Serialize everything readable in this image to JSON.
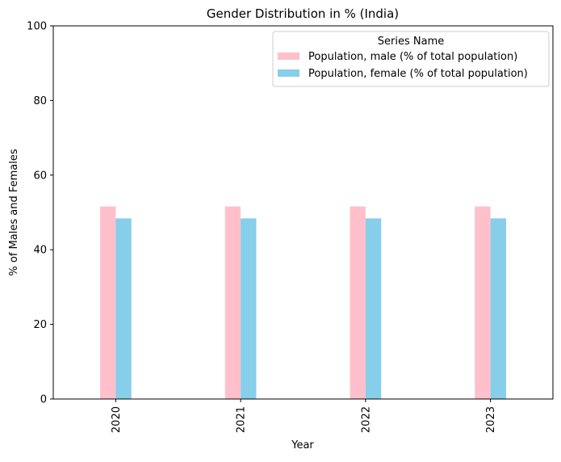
{
  "chart_data": {
    "type": "bar",
    "title": "Gender Distribution in % (India)",
    "xlabel": "Year",
    "ylabel": "% of Males and Females",
    "categories": [
      "2020",
      "2021",
      "2022",
      "2023"
    ],
    "ylim": [
      0,
      100
    ],
    "yticks": [
      "0",
      "20",
      "40",
      "60",
      "80",
      "100"
    ],
    "grid": false,
    "legend": {
      "title": "Series Name",
      "placement": "top-right"
    },
    "series": [
      {
        "name": "Population, male (% of total population)",
        "color": "#ffc0cb",
        "values": [
          51.6,
          51.6,
          51.6,
          51.6
        ]
      },
      {
        "name": "Population, female (% of total population)",
        "color": "#87ceeb",
        "values": [
          48.4,
          48.4,
          48.4,
          48.4
        ]
      }
    ]
  }
}
